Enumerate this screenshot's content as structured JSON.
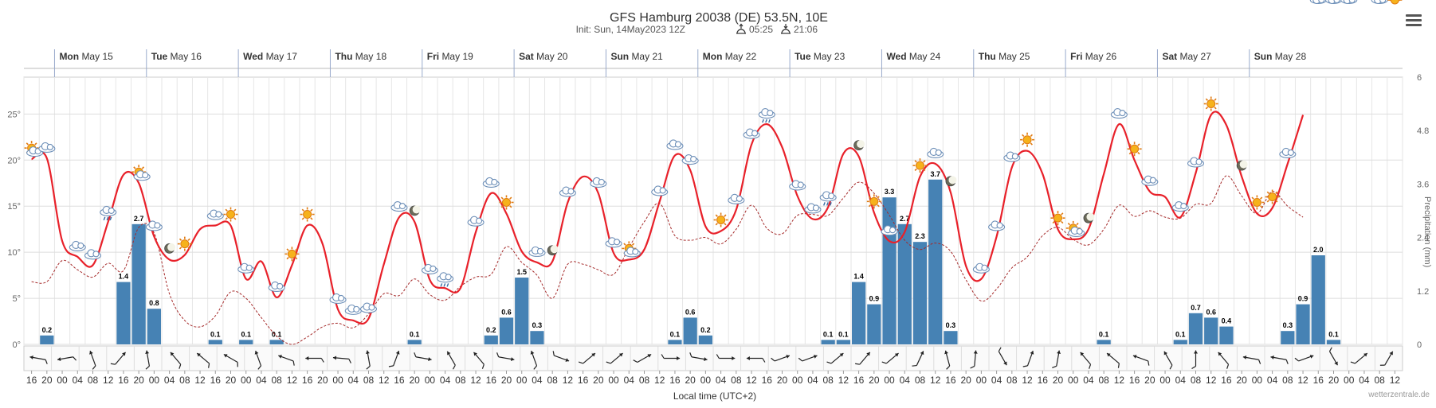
{
  "header": {
    "title": "GFS Hamburg 20038 (DE) 53.5N, 10E",
    "init_text": "Init: Sun, 14May2023 12Z",
    "sunrise": "05:25",
    "sunset": "21:06"
  },
  "x_axis_label": "Local time (UTC+2)",
  "credit": "wetterzentrale.de",
  "colors": {
    "temp": "#e8212a",
    "dew": "#a52a2a",
    "bars": "#4682b4",
    "grid": "#e6e6e6"
  },
  "chart_data": {
    "type": "line+bar",
    "title": "GFS Hamburg 20038 (DE) 53.5N, 10E",
    "xlabel": "Local time (UTC+2)",
    "ylabel_right": "Precipitation (mm)",
    "time_step_hours": 4,
    "start_hour": 16,
    "ylim_left": [
      0,
      29
    ],
    "ylim_right": [
      0,
      6
    ],
    "yticks_left": [
      "0°",
      "5°",
      "10°",
      "15°",
      "20°",
      "25°"
    ],
    "yticks_right": [
      "0",
      "1.2",
      "2.4",
      "3.6",
      "4.8",
      "6"
    ],
    "days": [
      {
        "dow": "Mon",
        "date": "May 15"
      },
      {
        "dow": "Tue",
        "date": "May 16"
      },
      {
        "dow": "Wed",
        "date": "May 17"
      },
      {
        "dow": "Thu",
        "date": "May 18"
      },
      {
        "dow": "Fri",
        "date": "May 19"
      },
      {
        "dow": "Sat",
        "date": "May 20"
      },
      {
        "dow": "Sun",
        "date": "May 21"
      },
      {
        "dow": "Mon",
        "date": "May 22"
      },
      {
        "dow": "Tue",
        "date": "May 23"
      },
      {
        "dow": "Wed",
        "date": "May 24"
      },
      {
        "dow": "Thu",
        "date": "May 25"
      },
      {
        "dow": "Fri",
        "date": "May 26"
      },
      {
        "dow": "Sat",
        "date": "May 27"
      },
      {
        "dow": "Sun",
        "date": "May 28"
      }
    ],
    "hour_labels": [
      "16",
      "20",
      "00",
      "04",
      "08",
      "12",
      "16",
      "20",
      "00",
      "04",
      "08",
      "12",
      "16",
      "20",
      "00",
      "04",
      "08",
      "12",
      "16",
      "20",
      "00",
      "04",
      "08",
      "12",
      "16",
      "20",
      "00",
      "04",
      "08",
      "12",
      "16",
      "20",
      "00",
      "04",
      "08",
      "12",
      "16",
      "20",
      "00",
      "04",
      "08",
      "12",
      "16",
      "20",
      "00",
      "04",
      "08",
      "12",
      "16",
      "20",
      "00",
      "04",
      "08",
      "12",
      "16",
      "20",
      "00",
      "04",
      "08",
      "12",
      "16",
      "20",
      "00",
      "04",
      "08",
      "12",
      "16",
      "20",
      "00",
      "04",
      "08",
      "12",
      "16",
      "20",
      "00",
      "04",
      "08",
      "12",
      "16",
      "20",
      "00",
      "04",
      "08",
      "12",
      "16",
      "20",
      "00",
      "04",
      "08",
      "12"
    ],
    "temperature": [
      20.1,
      20.2,
      11.2,
      9.5,
      8.6,
      13.3,
      18.4,
      17.5,
      11.7,
      9.2,
      9.7,
      12.5,
      12.9,
      12.9,
      7.1,
      9.0,
      5.1,
      8.6,
      12.9,
      10.9,
      3.8,
      2.6,
      2.8,
      8.7,
      13.8,
      13.3,
      7.0,
      6.1,
      6.1,
      12.2,
      16.4,
      14.2,
      10.1,
      8.9,
      9.0,
      15.4,
      18.2,
      16.4,
      9.9,
      9.2,
      10.3,
      15.5,
      20.5,
      18.9,
      12.8,
      12.3,
      14.6,
      21.7,
      23.9,
      21.4,
      16.1,
      13.6,
      14.9,
      20.7,
      20.4,
      14.3,
      11.2,
      12.2,
      18.2,
      19.6,
      16.5,
      8.5,
      7.1,
      11.7,
      19.2,
      21.0,
      18.5,
      12.5,
      11.4,
      12.5,
      18.5,
      23.9,
      20.0,
      16.6,
      16.0,
      13.8,
      18.6,
      24.9,
      23.8,
      18.2,
      14.2,
      14.8,
      19.6,
      24.9
    ],
    "dewpoint": [
      6.8,
      6.8,
      9.1,
      8.1,
      7.3,
      8.8,
      8.0,
      12.7,
      12.1,
      5.5,
      2.6,
      1.9,
      3.1,
      5.7,
      5.0,
      2.9,
      0.9,
      0.0,
      0.8,
      1.9,
      2.3,
      1.8,
      3.3,
      5.5,
      5.3,
      7.1,
      5.4,
      4.8,
      6.3,
      7.3,
      7.6,
      10.6,
      8.9,
      7.5,
      5.0,
      8.7,
      8.7,
      8.1,
      7.6,
      10.5,
      13.3,
      15.3,
      11.8,
      11.3,
      11.6,
      10.9,
      12.5,
      15.1,
      12.6,
      12.0,
      14.0,
      14.1,
      14.0,
      15.9,
      17.6,
      16.4,
      14.0,
      11.3,
      10.3,
      11.0,
      10.1,
      7.0,
      4.7,
      6.0,
      8.3,
      9.5,
      11.8,
      12.7,
      11.4,
      10.8,
      12.5,
      15.1,
      13.9,
      14.5,
      13.8,
      13.7,
      15.2,
      15.3,
      18.3,
      16.1,
      14.2,
      16.6,
      15.0,
      13.8
    ],
    "precipitation": [
      0,
      0.2,
      0,
      0,
      0,
      0,
      1.4,
      2.7,
      0.8,
      0,
      0,
      0,
      0.1,
      0,
      0.1,
      0,
      0.1,
      0,
      0,
      0,
      0,
      0,
      0,
      0,
      0,
      0.1,
      0,
      0,
      0,
      0,
      0.2,
      0.6,
      1.5,
      0.3,
      0,
      0,
      0,
      0,
      0,
      0,
      0,
      0,
      0.1,
      0.6,
      0.2,
      0,
      0,
      0,
      0,
      0,
      0,
      0,
      0.1,
      0.1,
      1.4,
      0.9,
      3.3,
      2.7,
      2.3,
      3.7,
      0.3,
      0,
      0,
      0,
      0,
      0,
      0,
      0,
      0,
      0,
      0.1,
      0,
      0,
      0,
      0,
      0.1,
      0.7,
      0.6,
      0.4,
      0,
      0,
      0,
      0.3,
      0.9,
      2.0,
      0.1,
      0,
      0
    ],
    "precip_labels": [
      "0.2",
      "1.4",
      "2.7",
      "0.8",
      "0.1",
      "0.1",
      "0.1",
      "0.1",
      "0.2",
      "0.6",
      "1.5",
      "0.3",
      "0.1",
      "0.6",
      "0.2",
      "0.1",
      "0.1",
      "1.4",
      "0.9",
      "3.3",
      "2.7",
      "2.3",
      "3.7",
      "0.3",
      "0.1",
      "0.1",
      "0.7",
      "0.6",
      "0.4",
      "0.3",
      "0.9",
      "2.0",
      "0.1"
    ],
    "weather_icons": [
      "sun-cloud",
      "cloud",
      "cloud",
      "cloud",
      "rain",
      "sun-cloud",
      "cloud",
      "moon",
      "sun",
      "cloud",
      "sun",
      "cloud",
      "cloud",
      "sun",
      "sun",
      "cloud",
      "cloud",
      "cloud",
      "cloud",
      "moon",
      "cloud",
      "rain",
      "cloud",
      "cloud",
      "sun",
      "cloud",
      "moon",
      "cloud",
      "cloud",
      "cloud",
      "sun-cloud",
      "cloud",
      "cloud",
      "cloud",
      "sun",
      "cloud",
      "cloud",
      "rain",
      "cloud",
      "cloud",
      "rain",
      "moon",
      "sun",
      "cloud",
      "sun",
      "cloud",
      "moon",
      "cloud",
      "cloud",
      "cloud",
      "sun",
      "sun",
      "sun-cloud",
      "moon",
      "cloud",
      "sun",
      "cloud",
      "cloud",
      "cloud",
      "sun",
      "moon",
      "sun",
      "sun",
      "cloud",
      "cloud",
      "cloud",
      "cloud",
      "cloud",
      "sun"
    ],
    "wind_dirs": [
      100,
      80,
      160,
      220,
      170,
      140,
      130,
      120,
      160,
      110,
      90,
      95,
      170,
      200,
      280,
      150,
      140,
      280,
      160,
      290,
      230,
      230,
      240,
      270,
      280,
      270,
      90,
      250,
      250,
      230,
      220,
      230,
      205,
      165,
      185,
      330,
      200,
      190,
      140,
      130,
      110,
      150,
      180,
      140,
      100,
      100,
      250,
      330,
      230,
      210
    ]
  }
}
